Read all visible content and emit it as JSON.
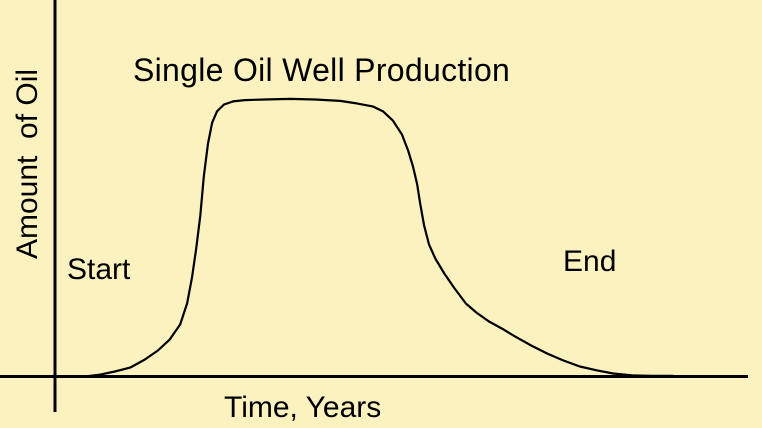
{
  "colors": {
    "background": "#FBF2C0",
    "line": "#000000",
    "text": "#000000"
  },
  "chart_data": {
    "type": "line",
    "title": "Single Oil Well Production",
    "xlabel": "Time, Years",
    "ylabel": "Amount  of Oil",
    "annotations": [
      {
        "text": "Start",
        "location": "lower-left, near curve onset"
      },
      {
        "text": "End",
        "location": "lower-right, above curve tail"
      }
    ],
    "axes": {
      "x_range": [
        0,
        100
      ],
      "y_range": [
        0,
        105
      ],
      "x_ticks": [],
      "y_ticks": [],
      "grid": false,
      "legend": false,
      "style": "qualitative sketch axes without tick labels"
    },
    "series": [
      {
        "name": "oil-production-curve",
        "color": "#000000",
        "points": [
          [
            4.6,
            0
          ],
          [
            6.8,
            0.7
          ],
          [
            8.9,
            1.8
          ],
          [
            11.1,
            3.2
          ],
          [
            13.2,
            6.1
          ],
          [
            15.1,
            9.4
          ],
          [
            16.8,
            13.4
          ],
          [
            18.3,
            18.8
          ],
          [
            19.3,
            26.4
          ],
          [
            20.0,
            35.7
          ],
          [
            20.6,
            46.2
          ],
          [
            21.2,
            58.1
          ],
          [
            21.7,
            72.2
          ],
          [
            22.3,
            84.1
          ],
          [
            22.9,
            91.7
          ],
          [
            23.6,
            95.7
          ],
          [
            24.6,
            98.2
          ],
          [
            25.9,
            99.3
          ],
          [
            27.6,
            99.8
          ],
          [
            30.5,
            100
          ],
          [
            34.1,
            100.2
          ],
          [
            37.7,
            100
          ],
          [
            41.3,
            99.5
          ],
          [
            43.7,
            98.6
          ],
          [
            46.0,
            97.5
          ],
          [
            47.5,
            95.7
          ],
          [
            48.9,
            92.4
          ],
          [
            50.2,
            87.4
          ],
          [
            51.1,
            81.6
          ],
          [
            51.8,
            75.8
          ],
          [
            52.4,
            69.3
          ],
          [
            52.8,
            62.8
          ],
          [
            53.4,
            54.5
          ],
          [
            54.1,
            47.7
          ],
          [
            55.0,
            42.6
          ],
          [
            56.3,
            37.2
          ],
          [
            57.7,
            32.1
          ],
          [
            59.4,
            26.4
          ],
          [
            60.9,
            23.1
          ],
          [
            62.7,
            19.9
          ],
          [
            64.6,
            17.3
          ],
          [
            66.5,
            14.4
          ],
          [
            68.8,
            11.2
          ],
          [
            71.1,
            8.3
          ],
          [
            73.4,
            5.8
          ],
          [
            75.8,
            3.6
          ],
          [
            78.3,
            2.2
          ],
          [
            80.6,
            1.1
          ],
          [
            83.3,
            0.4
          ],
          [
            86.2,
            0.2
          ],
          [
            89.2,
            0.2
          ]
        ]
      }
    ]
  }
}
